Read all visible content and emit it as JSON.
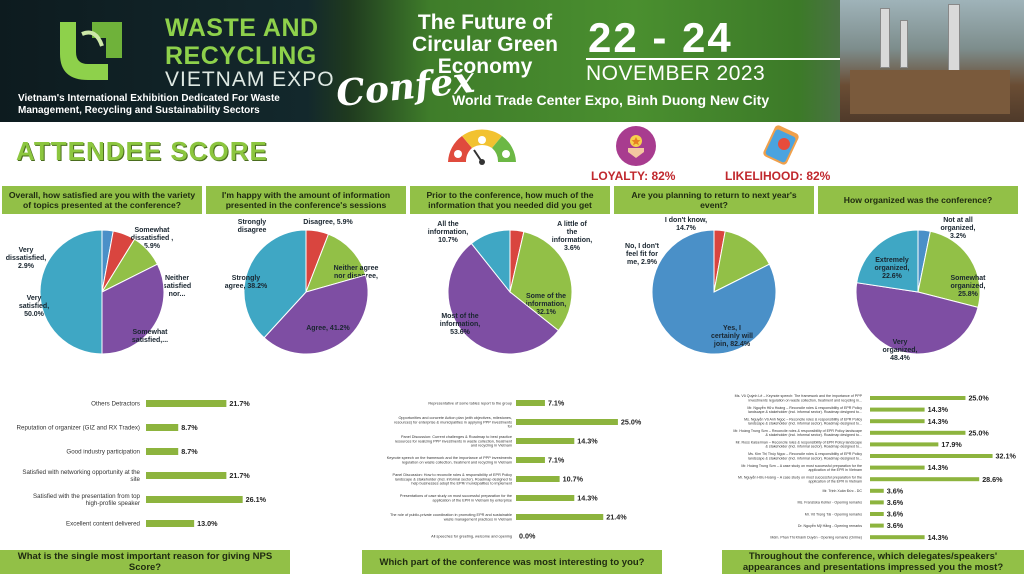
{
  "banner": {
    "expo_line1": "WASTE AND",
    "expo_line2": "RECYCLING",
    "expo_line3": "VIETNAM EXPO",
    "expo_description": "Vietnam's International Exhibition Dedicated For Waste Management, Recycling and Sustainability Sectors",
    "confex_title": "The Future of Circular Green Economy",
    "confex_word": "Confex",
    "dates": "22 - 24",
    "month": "NOVEMBER 2023",
    "venue": "World Trade Center Expo, Binh Duong New City"
  },
  "score": {
    "title": "ATTENDEE SCORE",
    "loyalty": "LOYALTY: 82%",
    "likelihood": "LIKELIHOOD: 82%"
  },
  "colors": {
    "blue": "#4a90c8",
    "red": "#d9453f",
    "green": "#92c047",
    "purple": "#7e4ea3",
    "cyan": "#3fa7c4",
    "bar": "#8db43e",
    "brand_green": "#8cc63f",
    "accent_red": "#c0282d"
  },
  "chart_data": [
    {
      "type": "pie",
      "title": "Overall, how satisfied are you with the variety of topics presented at the conference?",
      "slices": [
        {
          "label": "Very dissatisfied, 2.9%",
          "value": 2.9,
          "color": "#4a90c8"
        },
        {
          "label": "Somewhat dissatisfied , 5.9%",
          "value": 5.9,
          "color": "#d9453f"
        },
        {
          "label": "Neither satisfied nor...",
          "value": 8.8,
          "color": "#92c047"
        },
        {
          "label": "Somewhat satisfied,...",
          "value": 32.4,
          "color": "#7e4ea3"
        },
        {
          "label": "Very satisfied, 50.0%",
          "value": 50.0,
          "color": "#3fa7c4"
        }
      ]
    },
    {
      "type": "pie",
      "title": "I'm happy with the amount of information presented in the conference's sessions",
      "slices": [
        {
          "label": "Strongly disagree",
          "value": 0,
          "color": "#4a90c8"
        },
        {
          "label": "Disagree, 5.9%",
          "value": 5.9,
          "color": "#d9453f"
        },
        {
          "label": "Neither agree nor disagree, 14.7%",
          "value": 14.7,
          "color": "#92c047"
        },
        {
          "label": "Agree, 41.2%",
          "value": 41.2,
          "color": "#7e4ea3"
        },
        {
          "label": "Strongly agree, 38.2%",
          "value": 38.2,
          "color": "#3fa7c4"
        }
      ]
    },
    {
      "type": "pie",
      "title": "Prior to the conference, how much of the information that you needed did you get",
      "slices": [
        {
          "label": "A little of the information, 3.6%",
          "value": 3.6,
          "color": "#d9453f"
        },
        {
          "label": "Some of the information, 32.1%",
          "value": 32.1,
          "color": "#92c047"
        },
        {
          "label": "Most of the information, 53.6%",
          "value": 53.6,
          "color": "#7e4ea3"
        },
        {
          "label": "All the information, 10.7%",
          "value": 10.7,
          "color": "#3fa7c4"
        }
      ]
    },
    {
      "type": "pie",
      "title": "Are you planning to return to next year's event?",
      "slices": [
        {
          "label": "No, I don't feel fit for me, 2.9%",
          "value": 2.9,
          "color": "#d9453f"
        },
        {
          "label": "I don't know, 14.7%",
          "value": 14.7,
          "color": "#92c047"
        },
        {
          "label": "Yes, I certainly will join, 82.4%",
          "value": 82.4,
          "color": "#4a90c8"
        }
      ]
    },
    {
      "type": "pie",
      "title": "How organized was the conference?",
      "slices": [
        {
          "label": "Not at all organized, 3.2%",
          "value": 3.2,
          "color": "#4a90c8"
        },
        {
          "label": "Somewhat organized, 25.8%",
          "value": 25.8,
          "color": "#92c047"
        },
        {
          "label": "Very organized, 48.4%",
          "value": 48.4,
          "color": "#7e4ea3"
        },
        {
          "label": "Extremely organized, 22.6%",
          "value": 22.6,
          "color": "#3fa7c4"
        }
      ]
    },
    {
      "type": "bar",
      "title": "What is the single most important reason for giving NPS Score?",
      "categories": [
        "Others Detractors",
        "Reputation of organizer (GIZ and RX Tradex)",
        "Good industry participation",
        "Satisfied with networking opportunity at the site",
        "Satisfied with the presentation from top high-profile speaker",
        "Excellent content delivered"
      ],
      "values": [
        21.7,
        8.7,
        8.7,
        21.7,
        26.1,
        13.0
      ],
      "value_labels": [
        "21.7%",
        "8.7%",
        "8.7%",
        "21.7%",
        "26.1%",
        "13.0%"
      ],
      "unit": "%"
    },
    {
      "type": "bar",
      "title": "Which part of the conference was most interesting to you?",
      "categories": [
        "Representative of some tables report to the group",
        "Opportunities and concrete Action plan (with objectives, milestones, resources) for enterprise & municipalities in applying PPP investments for",
        "Panel Discussion: Current challenges & Roadmap to best practice resources for realizing PPP investments in waste collection, treatment and recycling in Vietnam",
        "Keynote speech on the framework and the importance of PPP investments regulation on waste collection, treatment and recycling in Vietnam",
        "Panel Discussion: How to reconcile roles & responsibility of EPR Policy landscape & stakeholder (incl. informal sector). Roadmap designed to help businesses adopt the EPR/ municipalities to implement",
        "Presentations of case study on most successful preparation for the application of the EPR in Vietnam by enterprise",
        "The role of public-private coordination in promoting EPR and sustainable waste management practices in Vietnam",
        "All speeches for greeting, welcome and opening"
      ],
      "values": [
        7.1,
        25.0,
        14.3,
        7.1,
        10.7,
        14.3,
        21.4,
        0.0
      ],
      "value_labels": [
        "7.1%",
        "25.0%",
        "14.3%",
        "7.1%",
        "10.7%",
        "14.3%",
        "21.4%",
        "0.0%"
      ],
      "unit": "%"
    },
    {
      "type": "bar",
      "title": "Throughout the conference, which delegates/speakers' appearances and presentations impressed you the most?",
      "categories": [
        "Ms. Vũ Quỳnh Lê – Keynote speech: The framework and the importance of PPP investments regulation on waste collection, treatment and recycling in...",
        "Mr. Nguyễn Hữu Hoàng – Reconcile roles & responsibility of EPR Policy landscape & stakeholder (incl. informal sector). Roadmap designed to...",
        "Ms. Nguyễn Vũ Anh Ngọc – Reconcile roles & responsibility of EPR Policy landscape & stakeholder (incl. informal sector). Roadmap designed to...",
        "Mr. Hoàng Trung Sơn – Reconcile roles & responsibility of EPR Policy landscape & stakeholder (incl. informal sector). Roadmap designed to...",
        "Mr. Ross Kaiserman – Reconcile roles & responsibility of EPR Policy landscape & stakeholder (incl. informal sector). Roadmap designed to...",
        "Ms. Kim Thị Thúy Ngọc – Reconcile roles & responsibility of EPR Policy landscape & stakeholder (incl. informal sector). Roadmap designed to...",
        "Mr. Hoàng Trung Sơn – A case study on most successful preparation for the application of the EPR in Vietnam",
        "Mr. Nguyễn Hữu Hoàng – A case study on most successful preparation for the application of the EPR in Vietnam",
        "Mr. Trịnh Xuân Đức - DC",
        "Ms. Franziska Kohler - Opening remarks",
        "Mr. Võ Trọng Tài - Opening remarks",
        "Dr. Nguyễn Mỹ Hằng - Opening remarks",
        "Mdm. Phan Thị Khánh Duyên - Opening remarks (Online)"
      ],
      "values": [
        25.0,
        14.3,
        14.3,
        25.0,
        17.9,
        32.1,
        14.3,
        28.6,
        3.6,
        3.6,
        3.6,
        3.6,
        14.3
      ],
      "value_labels": [
        "25.0%",
        "14.3%",
        "14.3%",
        "25.0%",
        "17.9%",
        "32.1%",
        "14.3%",
        "28.6%",
        "3.6%",
        "3.6%",
        "3.6%",
        "3.6%",
        "14.3%"
      ],
      "unit": "%"
    }
  ]
}
